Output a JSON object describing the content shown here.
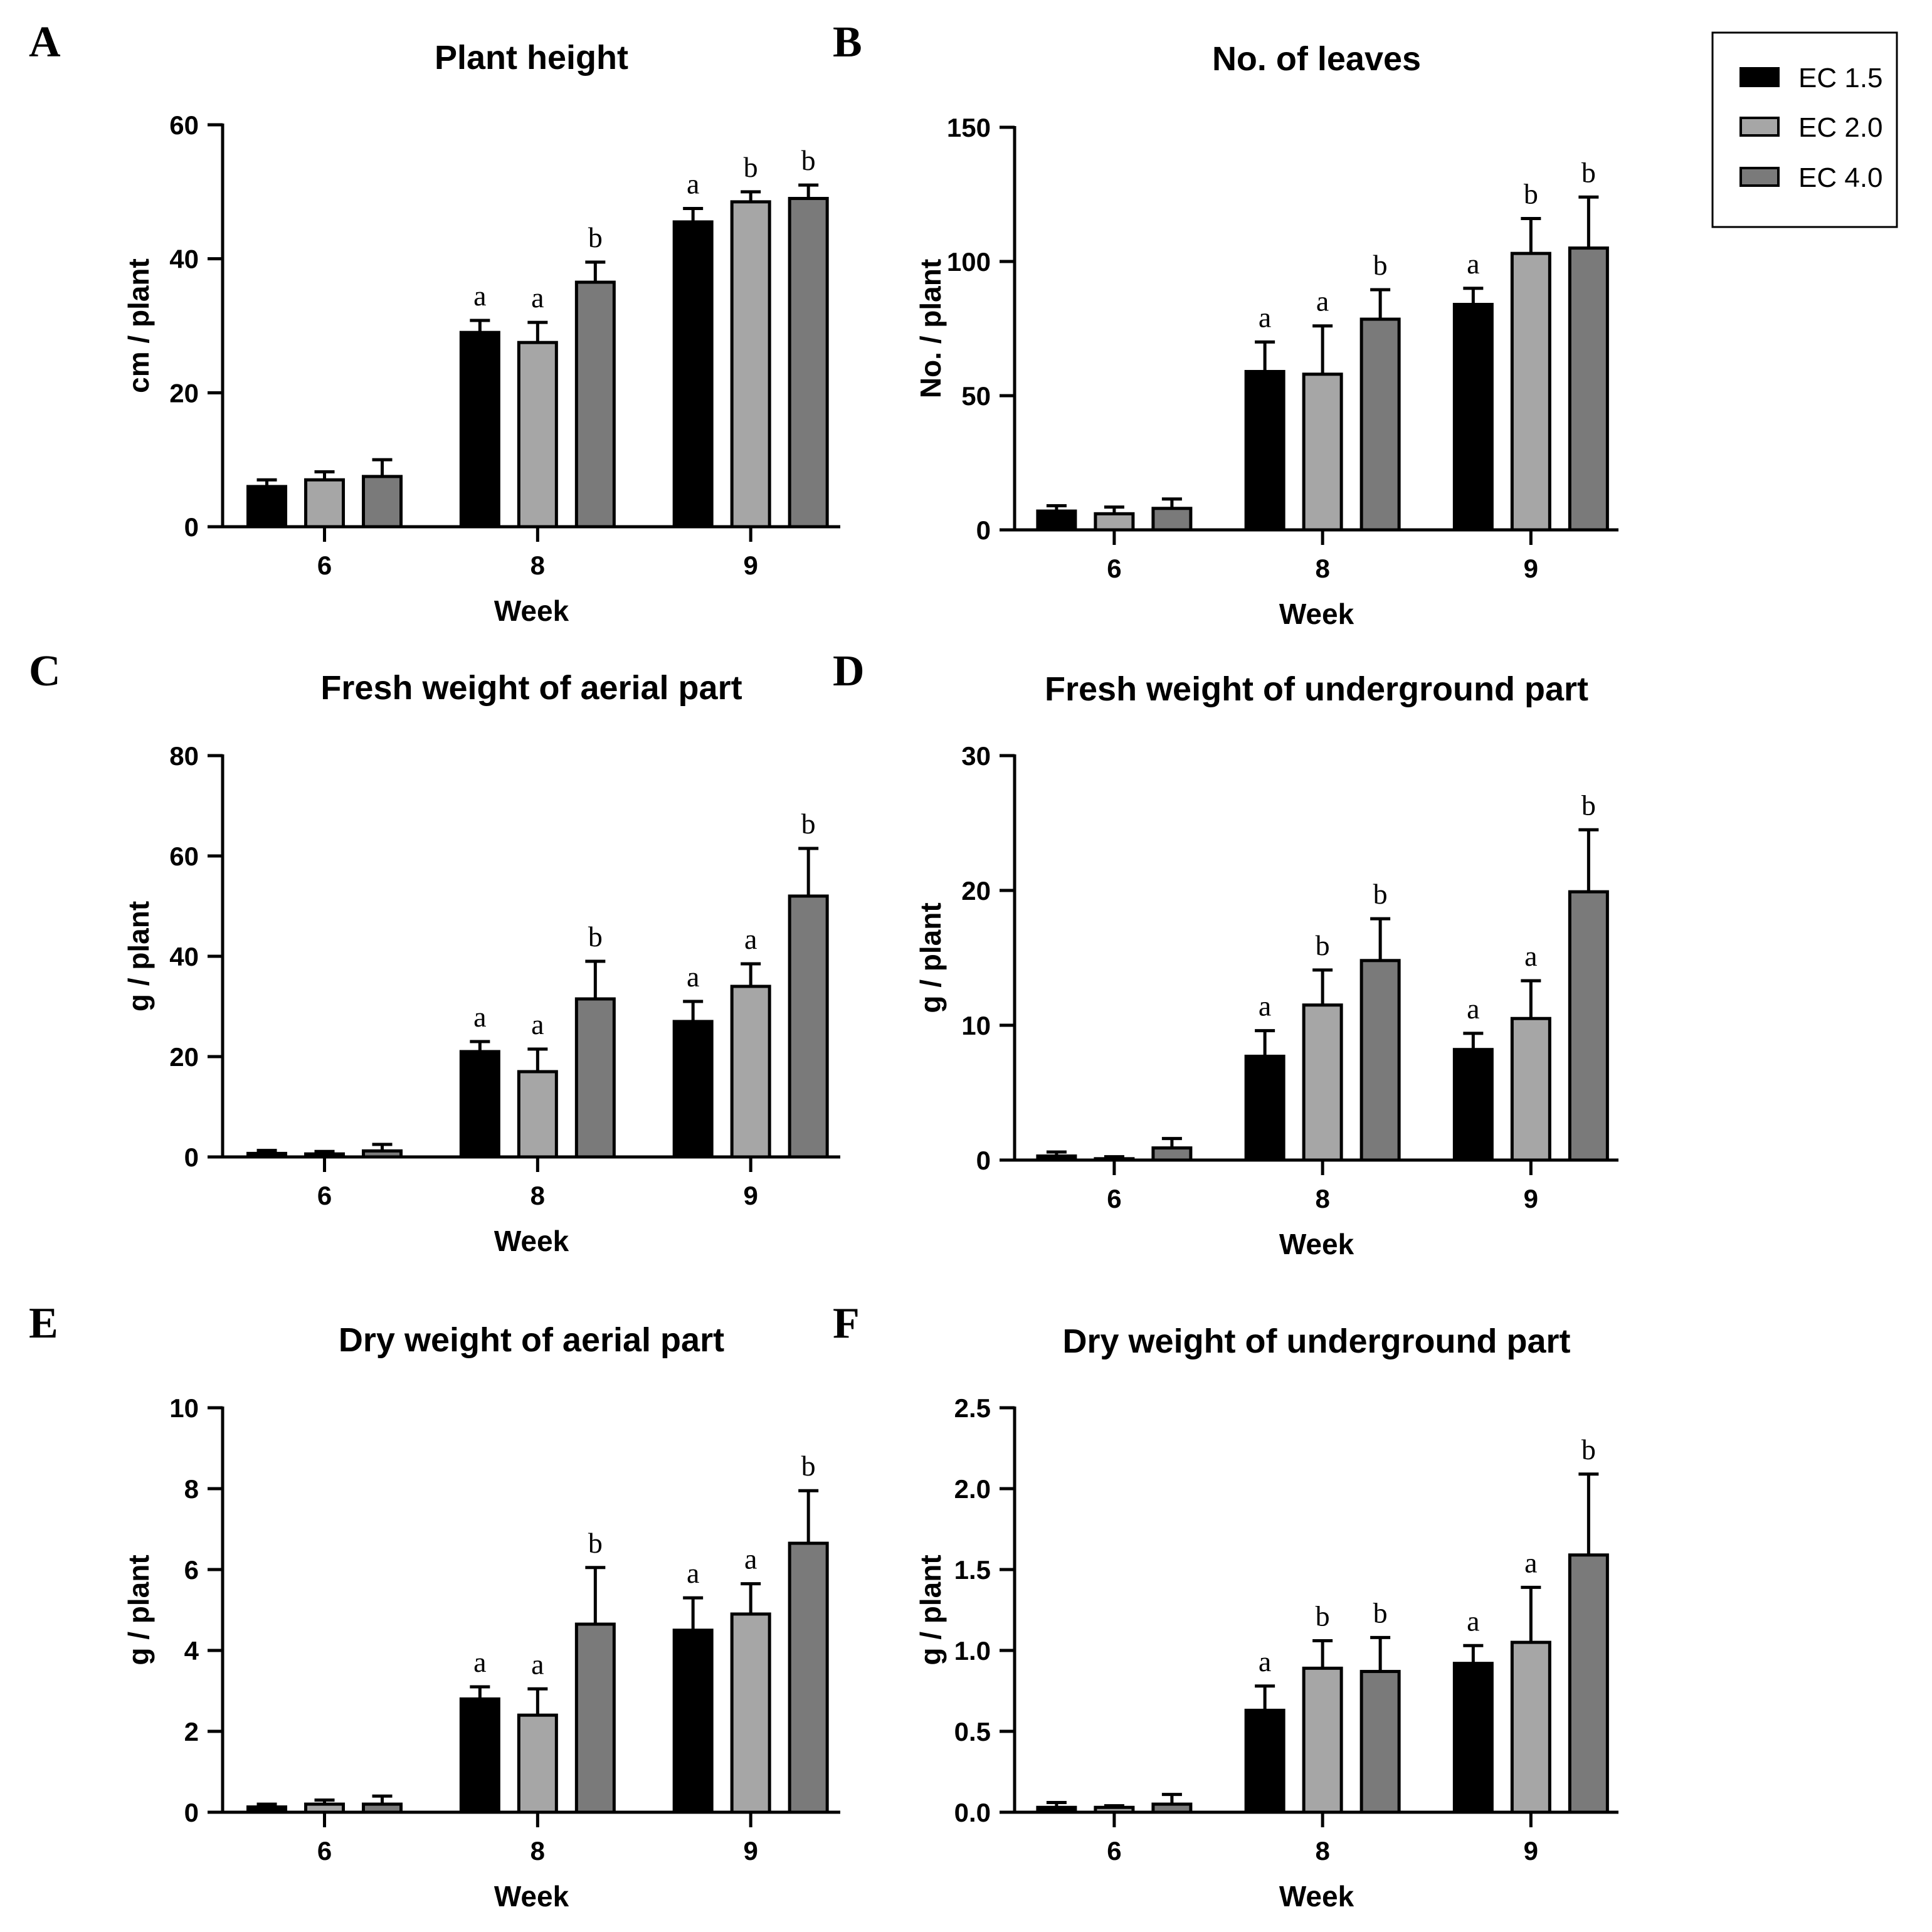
{
  "legend": {
    "items": [
      {
        "label": "EC 1.5",
        "color": "#000000"
      },
      {
        "label": "EC 2.0",
        "color": "#a6a6a6"
      },
      {
        "label": "EC 4.0",
        "color": "#7a7a7a"
      }
    ]
  },
  "chart_data": [
    {
      "panel": "A",
      "type": "bar",
      "title": "Plant height",
      "xlabel": "Week",
      "ylabel": "cm / plant",
      "categories": [
        "6",
        "8",
        "9"
      ],
      "ylim": [
        0,
        60
      ],
      "yticks": [
        "0",
        "20",
        "40",
        "60"
      ],
      "series": [
        {
          "name": "EC 1.5",
          "values": [
            6,
            29,
            45.5
          ],
          "errors": [
            1,
            1.8,
            2
          ],
          "letters": [
            "",
            "a",
            "a"
          ]
        },
        {
          "name": "EC 2.0",
          "values": [
            7,
            27.5,
            48.5
          ],
          "errors": [
            1.2,
            3,
            1.5
          ],
          "letters": [
            "",
            "a",
            "b"
          ]
        },
        {
          "name": "EC 4.0",
          "values": [
            7.5,
            36.5,
            49
          ],
          "errors": [
            2.5,
            3,
            2
          ],
          "letters": [
            "",
            "b",
            "b"
          ]
        }
      ]
    },
    {
      "panel": "B",
      "type": "bar",
      "title": "No. of leaves",
      "xlabel": "Week",
      "ylabel": "No. / plant",
      "categories": [
        "6",
        "8",
        "9"
      ],
      "ylim": [
        0,
        150
      ],
      "yticks": [
        "0",
        "50",
        "100",
        "150"
      ],
      "series": [
        {
          "name": "EC 1.5",
          "values": [
            7,
            59,
            84
          ],
          "errors": [
            2,
            11,
            6
          ],
          "letters": [
            "",
            "a",
            "a"
          ]
        },
        {
          "name": "EC 2.0",
          "values": [
            6,
            58,
            103
          ],
          "errors": [
            2.5,
            18,
            13
          ],
          "letters": [
            "",
            "a",
            "b"
          ]
        },
        {
          "name": "EC 4.0",
          "values": [
            8,
            78.5,
            105
          ],
          "errors": [
            3.5,
            11,
            19
          ],
          "letters": [
            "",
            "b",
            "b"
          ]
        }
      ]
    },
    {
      "panel": "C",
      "type": "bar",
      "title": "Fresh weight of aerial part",
      "xlabel": "Week",
      "ylabel": "g / plant",
      "categories": [
        "6",
        "8",
        "9"
      ],
      "ylim": [
        0,
        80
      ],
      "yticks": [
        "0",
        "20",
        "40",
        "60",
        "80"
      ],
      "series": [
        {
          "name": "EC 1.5",
          "values": [
            0.7,
            21,
            27
          ],
          "errors": [
            0.6,
            2,
            4
          ],
          "letters": [
            "",
            "a",
            "a"
          ]
        },
        {
          "name": "EC 2.0",
          "values": [
            0.6,
            17,
            34
          ],
          "errors": [
            0.5,
            4.5,
            4.5
          ],
          "letters": [
            "",
            "a",
            "a"
          ]
        },
        {
          "name": "EC 4.0",
          "values": [
            1.2,
            31.5,
            52
          ],
          "errors": [
            1.3,
            7.5,
            9.5
          ],
          "letters": [
            "",
            "b",
            "b"
          ]
        }
      ]
    },
    {
      "panel": "D",
      "type": "bar",
      "title": "Fresh weight of underground part",
      "xlabel": "Week",
      "ylabel": "g / plant",
      "categories": [
        "6",
        "8",
        "9"
      ],
      "ylim": [
        0,
        30
      ],
      "yticks": [
        "0",
        "10",
        "20",
        "30"
      ],
      "series": [
        {
          "name": "EC 1.5",
          "values": [
            0.3,
            7.7,
            8.2
          ],
          "errors": [
            0.3,
            1.9,
            1.2
          ],
          "letters": [
            "",
            "a",
            "a"
          ]
        },
        {
          "name": "EC 2.0",
          "values": [
            0.1,
            11.5,
            10.5
          ],
          "errors": [
            0.15,
            2.6,
            2.8
          ],
          "letters": [
            "",
            "b",
            "a"
          ]
        },
        {
          "name": "EC 4.0",
          "values": [
            0.9,
            14.8,
            19.9
          ],
          "errors": [
            0.7,
            3.1,
            4.6
          ],
          "letters": [
            "",
            "b",
            "b"
          ]
        }
      ]
    },
    {
      "panel": "E",
      "type": "bar",
      "title": "Dry weight of aerial part",
      "xlabel": "Week",
      "ylabel": "g / plant",
      "categories": [
        "6",
        "8",
        "9"
      ],
      "ylim": [
        0,
        10
      ],
      "yticks": [
        "0",
        "2",
        "4",
        "6",
        "8",
        "10"
      ],
      "series": [
        {
          "name": "EC 1.5",
          "values": [
            0.13,
            2.8,
            4.5
          ],
          "errors": [
            0.07,
            0.3,
            0.8
          ],
          "letters": [
            "",
            "a",
            "a"
          ]
        },
        {
          "name": "EC 2.0",
          "values": [
            0.2,
            2.4,
            4.9
          ],
          "errors": [
            0.1,
            0.65,
            0.75
          ],
          "letters": [
            "",
            "a",
            "a"
          ]
        },
        {
          "name": "EC 4.0",
          "values": [
            0.2,
            4.65,
            6.65
          ],
          "errors": [
            0.2,
            1.4,
            1.3
          ],
          "letters": [
            "",
            "b",
            "b"
          ]
        }
      ]
    },
    {
      "panel": "F",
      "type": "bar",
      "title": "Dry weight of underground part",
      "xlabel": "Week",
      "ylabel": "g / plant",
      "categories": [
        "6",
        "8",
        "9"
      ],
      "ylim": [
        0,
        2.5
      ],
      "yticks": [
        "0.0",
        "0.5",
        "1.0",
        "1.5",
        "2.0",
        "2.5"
      ],
      "series": [
        {
          "name": "EC 1.5",
          "values": [
            0.03,
            0.63,
            0.92
          ],
          "errors": [
            0.03,
            0.15,
            0.11
          ],
          "letters": [
            "",
            "a",
            "a"
          ]
        },
        {
          "name": "EC 2.0",
          "values": [
            0.03,
            0.89,
            1.05
          ],
          "errors": [
            0.01,
            0.17,
            0.34
          ],
          "letters": [
            "",
            "b",
            "a"
          ]
        },
        {
          "name": "EC 4.0",
          "values": [
            0.05,
            0.87,
            1.59
          ],
          "errors": [
            0.06,
            0.21,
            0.5
          ],
          "letters": [
            "",
            "b",
            "b"
          ]
        }
      ]
    }
  ]
}
